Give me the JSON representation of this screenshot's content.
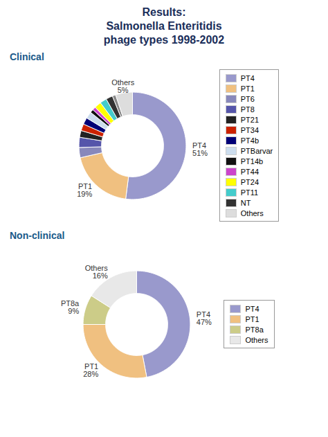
{
  "title": "Results:\nSalmonella Enteritidis\nphage types 1998-2002",
  "chart_data": [
    {
      "type": "donut",
      "title": "Clinical",
      "categories": [
        "PT4",
        "PT1",
        "PT6",
        "PT8",
        "PT21",
        "PT34",
        "PT4b",
        "PTBarvar",
        "PT14b",
        "PT44",
        "PT24",
        "PT11",
        "NT",
        null,
        "Others"
      ],
      "values": [
        51,
        19,
        3,
        3,
        2,
        2,
        2,
        2,
        1,
        1,
        2,
        2,
        2,
        1,
        5
      ],
      "colors": [
        "#9999cc",
        "#f0c080",
        "#8888bb",
        "#5555aa",
        "#222222",
        "#cc2200",
        "#000077",
        "#ccddee",
        "#111111",
        "#cc44cc",
        "#ffff00",
        "#44cccc",
        "#333333",
        "#888888",
        "#dddddd"
      ],
      "value_labels": [
        "PT4\n51%",
        "PT1\n19%",
        null,
        null,
        null,
        null,
        null,
        null,
        null,
        null,
        null,
        null,
        null,
        null,
        "Others\n5%"
      ],
      "data_labels": true,
      "legend": "right"
    },
    {
      "type": "donut",
      "title": "Non-clinical",
      "categories": [
        "PT4",
        "PT1",
        "PT8a",
        "Others"
      ],
      "values": [
        47,
        28,
        9,
        16
      ],
      "colors": [
        "#9999cc",
        "#f0c080",
        "#cccc88",
        "#e8e8e8"
      ],
      "value_labels": [
        "PT4\n47%",
        "PT1\n28%",
        "PT8a\n9%",
        "Others\n16%"
      ],
      "data_labels": true,
      "legend": "right"
    }
  ]
}
